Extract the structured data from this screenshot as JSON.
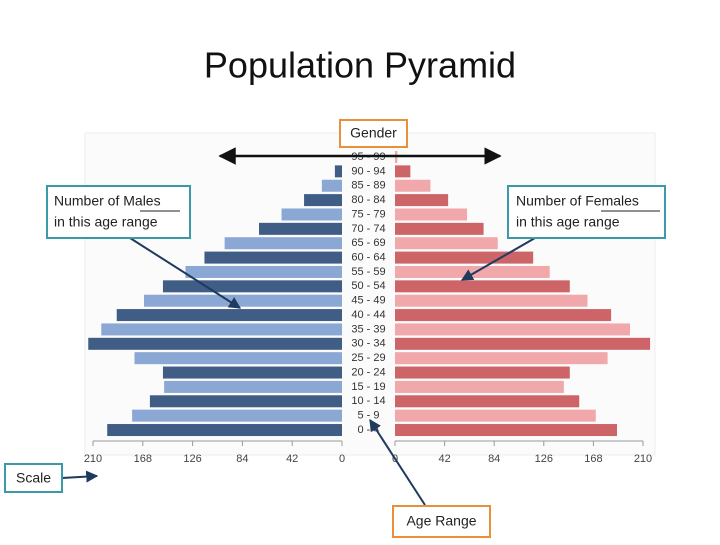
{
  "chart_data": {
    "type": "pyramid",
    "title": "Population Pyramid",
    "categories": [
      "95 - 99",
      "90 - 94",
      "85 - 89",
      "80 - 84",
      "75 - 79",
      "70 - 74",
      "65 - 69",
      "60 - 64",
      "55 - 59",
      "50 - 54",
      "45 - 49",
      "40 - 44",
      "35 - 39",
      "30 - 34",
      "25 - 29",
      "20 - 24",
      "15 - 19",
      "10 - 14",
      "5 - 9",
      "0 - 4"
    ],
    "series": [
      {
        "side": "left",
        "colors": [
          "#8ba7d3",
          "#405d86"
        ],
        "values": [
          0,
          6,
          17,
          32,
          51,
          70,
          99,
          116,
          132,
          151,
          167,
          190,
          203,
          214,
          175,
          151,
          150,
          162,
          177,
          198
        ]
      },
      {
        "side": "right",
        "colors": [
          "#f0a8aa",
          "#cc6468"
        ],
        "values": [
          2,
          13,
          30,
          45,
          61,
          75,
          87,
          117,
          131,
          148,
          163,
          183,
          199,
          216,
          180,
          148,
          143,
          156,
          170,
          188
        ]
      }
    ],
    "xlim": [
      0,
      210
    ],
    "xticks": [
      0,
      42,
      84,
      126,
      168,
      210
    ],
    "annotations": {
      "gender": "Gender",
      "males": [
        "Number of Males",
        "in this age range"
      ],
      "females": [
        "Number of Females",
        "in this age range"
      ],
      "scale": "Scale",
      "age_range": "Age Range"
    }
  }
}
